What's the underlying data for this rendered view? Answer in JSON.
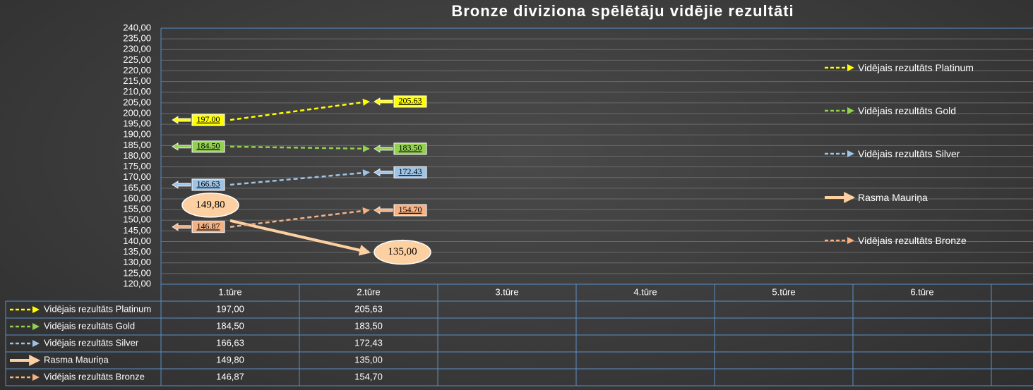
{
  "chart_data": {
    "type": "line",
    "title": "Bronze diviziona spēlētāju vidējie rezultāti",
    "categories": [
      "1.tūre",
      "2.tūre",
      "3.tūre",
      "4.tūre",
      "5.tūre",
      "6.tūre",
      null
    ],
    "ylim": [
      120,
      240
    ],
    "yticks": [
      {
        "value": 120,
        "label": "120,00"
      },
      {
        "value": 125,
        "label": "125,00"
      },
      {
        "value": 130,
        "label": "130,00"
      },
      {
        "value": 135,
        "label": "135,00"
      },
      {
        "value": 140,
        "label": "140,00"
      },
      {
        "value": 145,
        "label": "145,00"
      },
      {
        "value": 150,
        "label": "150,00"
      },
      {
        "value": 155,
        "label": "155,00"
      },
      {
        "value": 160,
        "label": "160,00"
      },
      {
        "value": 165,
        "label": "165,00"
      },
      {
        "value": 170,
        "label": "170,00"
      },
      {
        "value": 175,
        "label": "175,00"
      },
      {
        "value": 180,
        "label": "180,00"
      },
      {
        "value": 185,
        "label": "185,00"
      },
      {
        "value": 190,
        "label": "190,00"
      },
      {
        "value": 195,
        "label": "195,00"
      },
      {
        "value": 200,
        "label": "200,00"
      },
      {
        "value": 205,
        "label": "205,00"
      },
      {
        "value": 210,
        "label": "210,00"
      },
      {
        "value": 215,
        "label": "215,00"
      },
      {
        "value": 220,
        "label": "220,00"
      },
      {
        "value": 225,
        "label": "225,00"
      },
      {
        "value": 230,
        "label": "230,00"
      },
      {
        "value": 235,
        "label": "235,00"
      },
      {
        "value": 240,
        "label": "240,00"
      }
    ],
    "grid": true,
    "legend": "right",
    "series": [
      {
        "name": "Vidējais rezultāts Platinum",
        "color": "#ffff00",
        "style": "dashed",
        "values": [
          197.0,
          205.63,
          null,
          null,
          null,
          null,
          null
        ],
        "value_labels": [
          "197.00",
          "205.63",
          null,
          null,
          null,
          null,
          null
        ],
        "table_labels": [
          "197,00",
          "205,63",
          null,
          null,
          null,
          null,
          null
        ]
      },
      {
        "name": "Vidējais rezultāts Gold",
        "color": "#92d050",
        "style": "dashed",
        "values": [
          184.5,
          183.5,
          null,
          null,
          null,
          null,
          null
        ],
        "value_labels": [
          "184.50",
          "183.50",
          null,
          null,
          null,
          null,
          null
        ],
        "table_labels": [
          "184,50",
          "183,50",
          null,
          null,
          null,
          null,
          null
        ]
      },
      {
        "name": "Vidējais rezultāts Silver",
        "color": "#9dc3e6",
        "style": "dashed",
        "values": [
          166.63,
          172.43,
          null,
          null,
          null,
          null,
          null
        ],
        "value_labels": [
          "166.63",
          "172.43",
          null,
          null,
          null,
          null,
          null
        ],
        "table_labels": [
          "166,63",
          "172,43",
          null,
          null,
          null,
          null,
          null
        ]
      },
      {
        "name": "Rasma Mauriņa",
        "color": "#fdd0a2",
        "style": "solid",
        "values": [
          149.8,
          135.0,
          null,
          null,
          null,
          null,
          null
        ],
        "value_labels": [
          "149,80",
          "135,00",
          null,
          null,
          null,
          null,
          null
        ],
        "table_labels": [
          "149,80",
          "135,00",
          null,
          null,
          null,
          null,
          null
        ]
      },
      {
        "name": "Vidējais rezultāts Bronze",
        "color": "#f4b183",
        "style": "dashed",
        "values": [
          146.87,
          154.7,
          null,
          null,
          null,
          null,
          null
        ],
        "value_labels": [
          "146.87",
          "154.70",
          null,
          null,
          null,
          null,
          null
        ],
        "table_labels": [
          "146,87",
          "154,70",
          null,
          null,
          null,
          null,
          null
        ]
      }
    ]
  }
}
